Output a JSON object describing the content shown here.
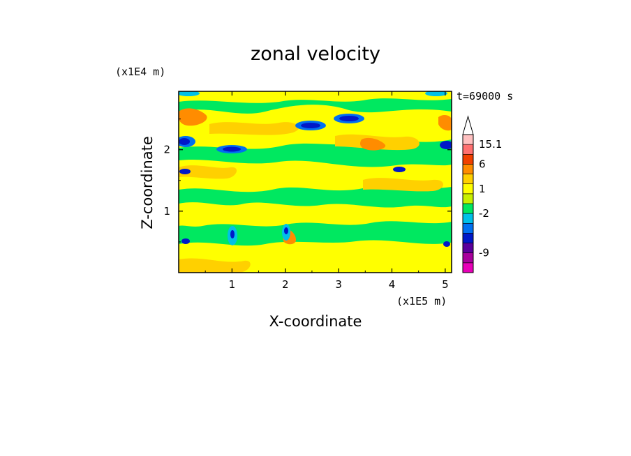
{
  "chart_data": {
    "type": "heatmap",
    "title": "zonal velocity",
    "xlabel": "X-coordinate",
    "ylabel": "Z-coordinate",
    "x_unit": "(x1E5 m)",
    "y_unit": "(x1E4 m)",
    "time_label": "t=69000 s",
    "xlim": [
      0,
      5.12
    ],
    "ylim": [
      0,
      2.95
    ],
    "x_ticks": [
      {
        "value": 1,
        "label": "1"
      },
      {
        "value": 2,
        "label": "2"
      },
      {
        "value": 3,
        "label": "3"
      },
      {
        "value": 4,
        "label": "4"
      },
      {
        "value": 5,
        "label": "5"
      }
    ],
    "y_ticks": [
      {
        "value": 1,
        "label": "1"
      },
      {
        "value": 2,
        "label": "2"
      }
    ],
    "colorbar": {
      "levels": [
        {
          "color": "#e800b8"
        },
        {
          "color": "#a8009c"
        },
        {
          "color": "#5a009c"
        },
        {
          "color": "#0018c8"
        },
        {
          "color": "#0070f0"
        },
        {
          "color": "#00c0e8"
        },
        {
          "color": "#00e860"
        },
        {
          "color": "#c8f000"
        },
        {
          "color": "#ffff00"
        },
        {
          "color": "#ffd000"
        },
        {
          "color": "#ff8c00"
        },
        {
          "color": "#f04000"
        },
        {
          "color": "#ff7070"
        },
        {
          "color": "#ffc0c0"
        }
      ],
      "labels": [
        {
          "value": "15.1",
          "at": 13
        },
        {
          "value": "6",
          "at": 11
        },
        {
          "value": "1",
          "at": 8.5
        },
        {
          "value": "-2",
          "at": 6
        },
        {
          "value": "-9",
          "at": 2
        }
      ],
      "extend": "max"
    },
    "grid": false,
    "legend": "colorbar-right"
  }
}
